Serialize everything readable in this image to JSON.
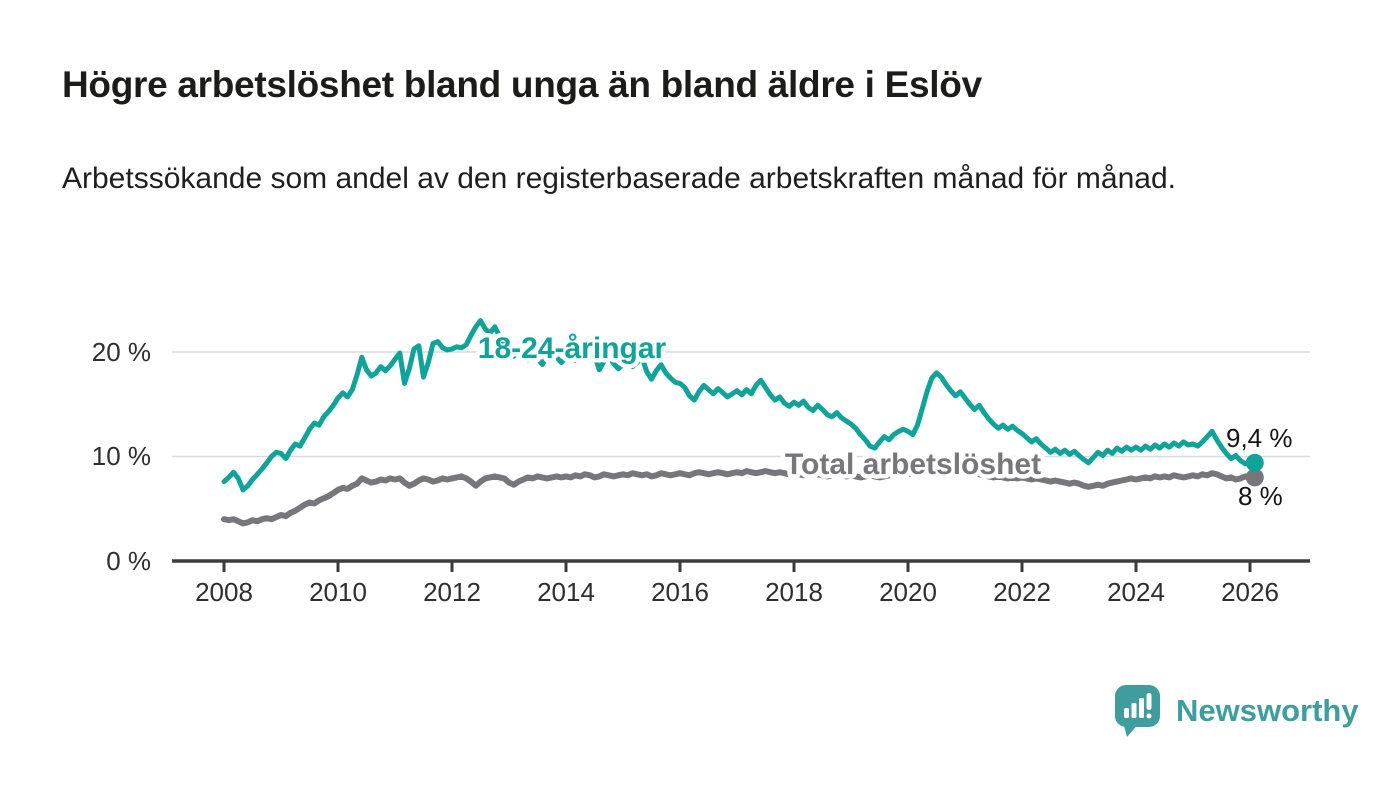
{
  "header": {
    "title": "Högre arbetslöshet bland unga än bland äldre i Eslöv",
    "subtitle": "Arbetssökande som andel av den registerbaserade arbetskraften månad för månad."
  },
  "chart_data": {
    "type": "line",
    "title": "Högre arbetslöshet bland unga än bland äldre i Eslöv",
    "subtitle": "Arbetssökande som andel av den registerbaserade arbetskraften månad för månad.",
    "xlabel": "",
    "ylabel": "",
    "x_start_year": 2008,
    "x_step_months": 1,
    "grid": "horizontal-only",
    "legend_position": "inline-labels",
    "x_axis": {
      "tick_labels": [
        "2008",
        "2010",
        "2012",
        "2014",
        "2016",
        "2018",
        "2020",
        "2022",
        "2024",
        "2026"
      ],
      "tick_years": [
        2008,
        2010,
        2012,
        2014,
        2016,
        2018,
        2020,
        2022,
        2024,
        2026
      ]
    },
    "y_axis": {
      "ticks": [
        {
          "value": 0,
          "label": "0 %"
        },
        {
          "value": 10,
          "label": "10 %"
        },
        {
          "value": 20,
          "label": "20 %"
        }
      ],
      "range": [
        0,
        24
      ]
    },
    "series": [
      {
        "name": "Total arbetslöshet",
        "color": "#77777b",
        "end_label": "8 %",
        "end_value": 8.0,
        "values": [
          4.0,
          3.9,
          4.0,
          3.8,
          3.6,
          3.7,
          3.9,
          3.8,
          4.0,
          4.1,
          4.0,
          4.2,
          4.4,
          4.3,
          4.6,
          4.8,
          5.1,
          5.4,
          5.6,
          5.5,
          5.8,
          6.0,
          6.2,
          6.5,
          6.8,
          7.0,
          6.9,
          7.2,
          7.4,
          7.9,
          7.7,
          7.5,
          7.6,
          7.8,
          7.7,
          7.9,
          7.8,
          7.9,
          7.5,
          7.2,
          7.4,
          7.7,
          7.9,
          7.8,
          7.6,
          7.7,
          7.9,
          7.8,
          7.9,
          8.0,
          8.1,
          7.9,
          7.6,
          7.2,
          7.6,
          7.9,
          8.0,
          8.1,
          8.0,
          7.9,
          7.5,
          7.3,
          7.6,
          7.8,
          8.0,
          7.9,
          8.1,
          8.0,
          7.9,
          8.0,
          8.1,
          8.0,
          8.1,
          8.0,
          8.2,
          8.1,
          8.3,
          8.2,
          8.0,
          8.1,
          8.3,
          8.2,
          8.1,
          8.2,
          8.3,
          8.2,
          8.4,
          8.3,
          8.2,
          8.3,
          8.1,
          8.2,
          8.4,
          8.3,
          8.2,
          8.3,
          8.4,
          8.3,
          8.2,
          8.4,
          8.5,
          8.4,
          8.3,
          8.4,
          8.5,
          8.4,
          8.3,
          8.4,
          8.5,
          8.4,
          8.6,
          8.5,
          8.4,
          8.5,
          8.6,
          8.5,
          8.4,
          8.5,
          8.4,
          8.3,
          8.4,
          8.3,
          8.2,
          8.3,
          8.4,
          8.3,
          8.2,
          8.1,
          8.2,
          8.3,
          8.2,
          8.1,
          8.2,
          8.1,
          8.0,
          8.1,
          8.2,
          8.1,
          8.0,
          8.1,
          8.2,
          8.3,
          8.2,
          8.3,
          8.4,
          8.3,
          8.5,
          8.8,
          9.0,
          8.9,
          8.8,
          8.7,
          8.6,
          8.5,
          8.4,
          8.5,
          8.6,
          8.5,
          8.4,
          8.3,
          8.2,
          8.1,
          8.0,
          8.1,
          8.0,
          7.9,
          8.0,
          7.9,
          8.0,
          7.9,
          7.8,
          7.9,
          7.8,
          7.7,
          7.6,
          7.7,
          7.6,
          7.5,
          7.4,
          7.5,
          7.4,
          7.2,
          7.1,
          7.2,
          7.3,
          7.2,
          7.4,
          7.5,
          7.6,
          7.7,
          7.8,
          7.9,
          7.8,
          7.9,
          8.0,
          7.9,
          8.1,
          8.0,
          8.1,
          8.0,
          8.2,
          8.1,
          8.0,
          8.1,
          8.2,
          8.1,
          8.3,
          8.2,
          8.4,
          8.3,
          8.1,
          7.9,
          8.0,
          7.8,
          7.9,
          8.1,
          7.9,
          8.0
        ]
      },
      {
        "name": "18-24-åringar",
        "color": "#0fa39a",
        "end_label": "9,4 %",
        "end_value": 9.4,
        "values": [
          7.6,
          8.0,
          8.5,
          7.9,
          6.8,
          7.2,
          7.8,
          8.3,
          8.8,
          9.4,
          10.0,
          10.4,
          10.3,
          9.8,
          10.6,
          11.2,
          11.0,
          11.8,
          12.6,
          13.2,
          13.0,
          13.8,
          14.3,
          14.9,
          15.6,
          16.1,
          15.7,
          16.4,
          17.8,
          19.5,
          18.3,
          17.7,
          18.0,
          18.6,
          18.2,
          18.7,
          19.3,
          19.9,
          17.0,
          18.4,
          20.3,
          20.6,
          17.6,
          19.0,
          20.8,
          21.0,
          20.4,
          20.2,
          20.3,
          20.5,
          20.4,
          20.7,
          21.6,
          22.4,
          23.0,
          22.2,
          21.8,
          22.4,
          21.5,
          20.8,
          20.2,
          19.6,
          20.3,
          19.8,
          19.2,
          19.9,
          19.4,
          18.8,
          19.6,
          20.1,
          19.5,
          19.0,
          19.4,
          19.8,
          19.2,
          19.6,
          20.0,
          20.4,
          19.7,
          18.3,
          19.1,
          19.6,
          18.9,
          18.4,
          18.8,
          19.3,
          18.6,
          19.0,
          19.5,
          18.1,
          17.4,
          18.2,
          18.8,
          18.0,
          17.5,
          17.1,
          17.0,
          16.6,
          15.8,
          15.4,
          16.2,
          16.8,
          16.4,
          16.0,
          16.5,
          16.1,
          15.7,
          16.0,
          16.3,
          15.9,
          16.4,
          16.0,
          16.8,
          17.3,
          16.6,
          15.9,
          15.4,
          15.7,
          15.1,
          14.8,
          15.2,
          14.9,
          15.3,
          14.7,
          14.4,
          14.9,
          14.5,
          14.0,
          13.8,
          14.2,
          13.7,
          13.4,
          13.1,
          12.7,
          12.1,
          11.6,
          11.0,
          10.8,
          11.4,
          11.9,
          11.6,
          12.1,
          12.4,
          12.6,
          12.4,
          12.1,
          13.0,
          14.6,
          16.2,
          17.5,
          18.0,
          17.6,
          16.9,
          16.3,
          15.8,
          16.2,
          15.6,
          15.0,
          14.5,
          14.9,
          14.2,
          13.6,
          13.1,
          12.7,
          13.0,
          12.6,
          12.9,
          12.5,
          12.2,
          11.8,
          11.4,
          11.7,
          11.2,
          10.8,
          10.4,
          10.7,
          10.3,
          10.6,
          10.2,
          10.5,
          10.1,
          9.7,
          9.4,
          9.9,
          10.4,
          10.1,
          10.6,
          10.3,
          10.8,
          10.5,
          10.9,
          10.6,
          10.9,
          10.6,
          11.0,
          10.7,
          11.1,
          10.8,
          11.2,
          10.9,
          11.3,
          11.0,
          11.4,
          11.1,
          11.2,
          11.0,
          11.4,
          11.9,
          12.4,
          11.6,
          10.9,
          10.3,
          9.8,
          10.1,
          9.6,
          9.3,
          9.6,
          9.4
        ]
      }
    ]
  },
  "branding": {
    "logo_text": "Newsworthy",
    "logo_color": "#3f9d9d",
    "logo_icon": "bar-chart-speech-bubble-icon"
  }
}
